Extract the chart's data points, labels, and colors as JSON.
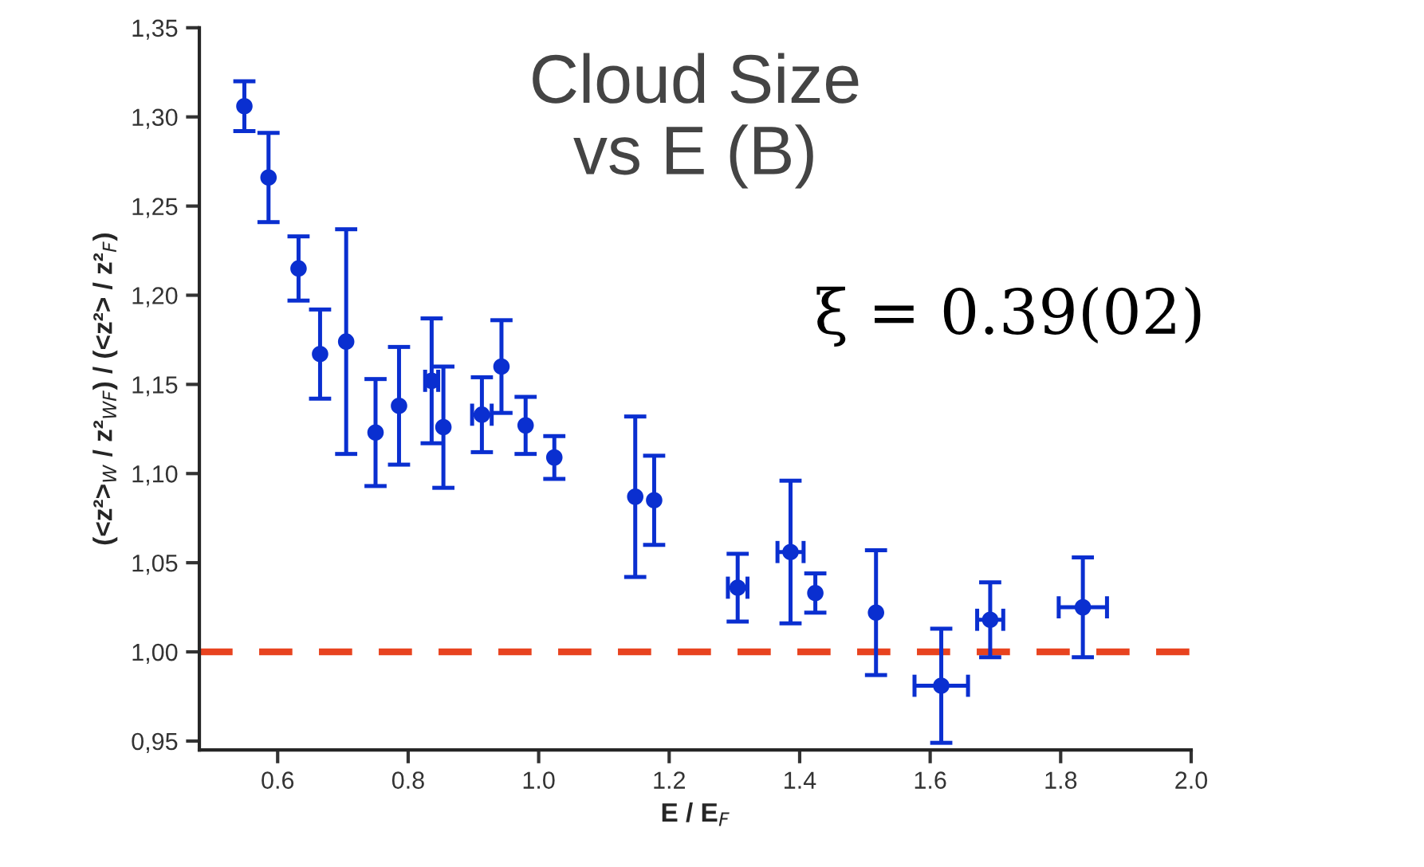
{
  "chart_data": {
    "type": "scatter",
    "title": "Cloud Size\nvs E (B)",
    "xlabel": "E / E$_{F}$",
    "ylabel": "(<z²>$_{W}$ / z²$_{WF}$) / (<z²> / z²$_{F}$)",
    "annotations": [
      "ξ = 0.39(02)"
    ],
    "x": [
      0.549,
      0.586,
      0.632,
      0.665,
      0.705,
      0.75,
      0.786,
      0.836,
      0.854,
      0.913,
      0.943,
      0.98,
      1.024,
      1.148,
      1.177,
      1.305,
      1.386,
      1.424,
      1.517,
      1.617,
      1.692,
      1.834
    ],
    "series": [
      {
        "color": "#0a2fd0",
        "values": [
          1.306,
          1.266,
          1.215,
          1.167,
          1.174,
          1.123,
          1.138,
          1.152,
          1.126,
          1.133,
          1.16,
          1.127,
          1.109,
          1.087,
          1.085,
          1.036,
          1.056,
          1.033,
          1.022,
          0.981,
          1.018,
          1.025
        ],
        "errors": [
          0.014,
          0.025,
          0.018,
          0.025,
          0.063,
          0.03,
          0.033,
          0.035,
          0.034,
          0.021,
          0.026,
          0.016,
          0.012,
          0.045,
          0.025,
          0.019,
          0.04,
          0.011,
          0.035,
          0.032,
          0.021,
          0.028
        ],
        "xerrors": [
          null,
          null,
          null,
          null,
          null,
          null,
          null,
          0.01,
          null,
          0.015,
          null,
          null,
          null,
          null,
          null,
          0.015,
          0.02,
          null,
          null,
          0.041,
          0.02,
          0.037
        ]
      }
    ],
    "marker": "circle",
    "xlim": [
      0.48,
      2.0
    ],
    "xticks": [
      0.6,
      0.8,
      {
        "value": 1.0,
        "label": "1.0"
      },
      1.2,
      1.4,
      1.6,
      1.8,
      {
        "value": 2.0,
        "label": "2.0"
      }
    ],
    "ylim": [
      0.945,
      1.35
    ],
    "yticks": [
      {
        "value": 0.95,
        "label": "0,95"
      },
      {
        "value": 1.0,
        "label": "1,00"
      },
      {
        "value": 1.05,
        "label": "1,05"
      },
      {
        "value": 1.1,
        "label": "1,10"
      },
      {
        "value": 1.15,
        "label": "1,15"
      },
      {
        "value": 1.2,
        "label": "1,20"
      },
      {
        "value": 1.25,
        "label": "1,25"
      },
      {
        "value": 1.3,
        "label": "1,30"
      },
      {
        "value": 1.35,
        "label": "1,35"
      }
    ],
    "ref_lines": [
      {
        "axis": "y",
        "value": 1.0,
        "color": "#e8431f",
        "line_style": "dashed"
      }
    ],
    "grid": false,
    "legend": false
  }
}
